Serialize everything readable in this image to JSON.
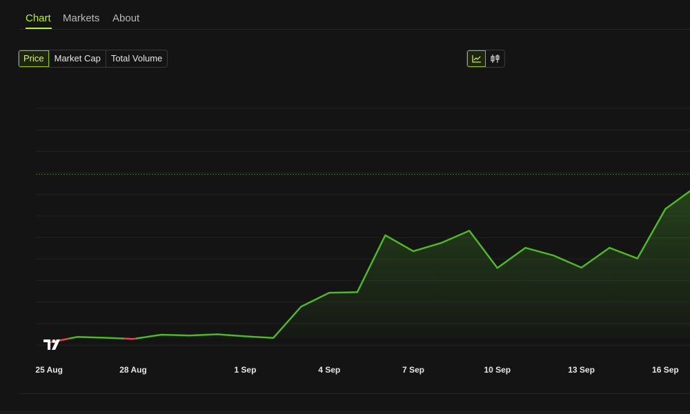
{
  "tabs": [
    {
      "label": "Chart",
      "active": true
    },
    {
      "label": "Markets",
      "active": false
    },
    {
      "label": "About",
      "active": false
    }
  ],
  "metric_toggle": {
    "options": [
      "Price",
      "Market Cap",
      "Total Volume"
    ],
    "selected": "Price"
  },
  "chart_type_toggle": {
    "options": [
      "line-chart-icon",
      "candlestick-icon"
    ],
    "selected": "line-chart-icon"
  },
  "colors": {
    "accent": "#b6f23a",
    "up_line": "#52b62a",
    "down_line": "#e04848",
    "reference_line": "#2f7a1c"
  },
  "chart_data": {
    "type": "area",
    "x": [
      "24 Aug",
      "25 Aug",
      "26 Aug",
      "27 Aug",
      "28 Aug",
      "29 Aug",
      "30 Aug",
      "31 Aug",
      "1 Sep",
      "2 Sep",
      "3 Sep",
      "4 Sep",
      "5 Sep",
      "6 Sep",
      "7 Sep",
      "8 Sep",
      "9 Sep",
      "10 Sep",
      "11 Sep",
      "12 Sep",
      "13 Sep",
      "14 Sep",
      "15 Sep",
      "16 Sep",
      "17 Sep"
    ],
    "y": [
      0.4,
      0.2,
      0.48,
      0.44,
      0.38,
      0.59,
      0.55,
      0.61,
      0.51,
      0.43,
      1.98,
      2.66,
      2.69,
      5.5,
      4.71,
      5.12,
      5.72,
      3.88,
      4.88,
      4.5,
      3.9,
      4.88,
      4.35,
      6.8,
      7.8
    ],
    "baseline": 0.4,
    "reference_value": 8.5,
    "ylim": [
      -0.6,
      12.0
    ],
    "x_tick_labels": [
      "25 Aug",
      "28 Aug",
      "1 Sep",
      "4 Sep",
      "7 Sep",
      "10 Sep",
      "13 Sep",
      "16 Sep"
    ],
    "grid": true,
    "title": "",
    "xlabel": "",
    "ylabel": ""
  }
}
